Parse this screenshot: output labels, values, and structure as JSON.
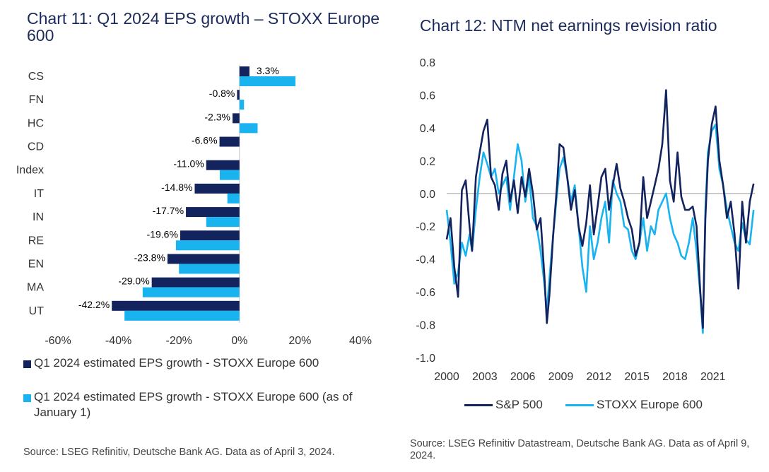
{
  "chart11": {
    "title": "Chart 11: Q1 2024 EPS growth – STOXX Europe 600",
    "source": "Source: LSEG Refinitiv, Deutsche Bank AG. Data as of April 3, 2024.",
    "colors": {
      "current": "#12235e",
      "jan": "#19b3f0"
    }
  },
  "chart12": {
    "title": "Chart 12: NTM net earnings revision ratio",
    "source": "Source: LSEG Refinitiv Datastream, Deutsche Bank AG. Data as of April 9, 2024.",
    "colors": {
      "sp500": "#12235e",
      "stoxx": "#19b3f0"
    }
  },
  "chart_data": [
    {
      "type": "bar",
      "orientation": "horizontal",
      "title": "Chart 11: Q1 2024 EPS growth – STOXX Europe 600",
      "categories": [
        "CS",
        "FN",
        "HC",
        "CD",
        "Index",
        "IT",
        "IN",
        "RE",
        "EN",
        "MA",
        "UT"
      ],
      "series": [
        {
          "name": "Q1 2024 estimated EPS growth - STOXX Europe 600",
          "values": [
            3.3,
            -0.8,
            -2.3,
            -6.6,
            -11.0,
            -14.8,
            -17.7,
            -19.6,
            -23.8,
            -29.0,
            -42.2
          ]
        },
        {
          "name": "Q1 2024 estimated EPS growth - STOXX Europe 600 (as of January 1)",
          "values": [
            18.5,
            1.5,
            6.0,
            0.0,
            -6.5,
            -4.0,
            -11.0,
            -21.0,
            -20.0,
            -32.0,
            -38.0
          ]
        }
      ],
      "data_labels": [
        "3.3%",
        "-0.8%",
        "-2.3%",
        "-6.6%",
        "-11.0%",
        "-14.8%",
        "-17.7%",
        "-19.6%",
        "-23.8%",
        "-29.0%",
        "-42.2%"
      ],
      "xlim": [
        -60,
        40
      ],
      "xticks": [
        -60,
        -40,
        -20,
        0,
        20,
        40
      ],
      "xtick_labels": [
        "-60%",
        "-40%",
        "-20%",
        "0%",
        "20%",
        "40%"
      ],
      "legend": "bottom"
    },
    {
      "type": "line",
      "title": "Chart 12: NTM net earnings revision ratio",
      "ylim": [
        -1.0,
        0.8
      ],
      "yticks": [
        0.8,
        0.6,
        0.4,
        0.2,
        0.0,
        -0.2,
        -0.4,
        -0.6,
        -0.8,
        -1.0
      ],
      "ytick_labels": [
        "0.8",
        "0.6",
        "0.4",
        "0.2",
        "0.0",
        "-0.2",
        "-0.4",
        "-0.6",
        "-0.8",
        "-1.0"
      ],
      "xlim": [
        2000,
        2024.3
      ],
      "xticks": [
        2000,
        2003,
        2006,
        2009,
        2012,
        2015,
        2018,
        2021
      ],
      "xtick_labels": [
        "2000",
        "2003",
        "2006",
        "2009",
        "2012",
        "2015",
        "2018",
        "2021"
      ],
      "legend": "bottom",
      "series": [
        {
          "name": "S&P 500",
          "x": [
            2000.0,
            2000.3,
            2000.6,
            2000.9,
            2001.2,
            2001.5,
            2001.8,
            2002.0,
            2002.3,
            2002.6,
            2002.9,
            2003.2,
            2003.5,
            2003.8,
            2004.1,
            2004.4,
            2004.7,
            2005.0,
            2005.3,
            2005.6,
            2005.9,
            2006.2,
            2006.5,
            2006.8,
            2007.1,
            2007.4,
            2007.7,
            2007.9,
            2008.1,
            2008.4,
            2008.7,
            2008.9,
            2009.2,
            2009.5,
            2009.8,
            2010.1,
            2010.4,
            2010.7,
            2011.0,
            2011.3,
            2011.6,
            2011.9,
            2012.2,
            2012.5,
            2012.8,
            2013.1,
            2013.4,
            2013.7,
            2014.0,
            2014.3,
            2014.6,
            2014.9,
            2015.2,
            2015.5,
            2015.8,
            2016.1,
            2016.4,
            2016.7,
            2017.0,
            2017.3,
            2017.6,
            2017.9,
            2018.2,
            2018.5,
            2018.8,
            2019.1,
            2019.4,
            2019.7,
            2020.0,
            2020.2,
            2020.4,
            2020.6,
            2020.9,
            2021.2,
            2021.5,
            2021.8,
            2022.1,
            2022.4,
            2022.7,
            2023.0,
            2023.3,
            2023.6,
            2023.9,
            2024.2
          ],
          "y": [
            -0.28,
            -0.15,
            -0.45,
            -0.63,
            0.02,
            0.08,
            -0.2,
            -0.35,
            0.1,
            0.25,
            0.38,
            0.45,
            0.1,
            0.05,
            -0.1,
            0.12,
            0.2,
            -0.05,
            0.08,
            -0.12,
            0.1,
            -0.02,
            0.15,
            0.0,
            -0.22,
            -0.15,
            -0.5,
            -0.79,
            -0.62,
            -0.25,
            0.05,
            0.3,
            0.28,
            0.1,
            -0.1,
            0.02,
            -0.2,
            -0.32,
            -0.18,
            0.05,
            -0.25,
            -0.08,
            0.1,
            0.15,
            -0.1,
            0.05,
            0.18,
            0.03,
            -0.05,
            -0.15,
            -0.22,
            -0.38,
            -0.3,
            0.1,
            -0.15,
            -0.05,
            0.05,
            0.15,
            0.3,
            0.63,
            0.08,
            -0.05,
            0.25,
            -0.02,
            -0.1,
            -0.1,
            -0.08,
            -0.2,
            -0.6,
            -0.82,
            -0.15,
            0.2,
            0.42,
            0.53,
            0.2,
            0.05,
            -0.15,
            -0.05,
            -0.25,
            -0.58,
            -0.05,
            -0.3,
            -0.05,
            0.06
          ]
        },
        {
          "name": "STOXX Europe 600",
          "x": [
            2000.0,
            2000.3,
            2000.6,
            2000.9,
            2001.2,
            2001.5,
            2001.8,
            2002.0,
            2002.3,
            2002.6,
            2002.9,
            2003.2,
            2003.5,
            2003.8,
            2004.1,
            2004.4,
            2004.7,
            2005.0,
            2005.3,
            2005.6,
            2005.9,
            2006.2,
            2006.5,
            2006.8,
            2007.1,
            2007.4,
            2007.7,
            2007.9,
            2008.1,
            2008.4,
            2008.7,
            2008.9,
            2009.2,
            2009.5,
            2009.8,
            2010.1,
            2010.4,
            2010.7,
            2011.0,
            2011.3,
            2011.6,
            2011.9,
            2012.2,
            2012.5,
            2012.8,
            2013.1,
            2013.4,
            2013.7,
            2014.0,
            2014.3,
            2014.6,
            2014.9,
            2015.2,
            2015.5,
            2015.8,
            2016.1,
            2016.4,
            2016.7,
            2017.0,
            2017.3,
            2017.6,
            2017.9,
            2018.2,
            2018.5,
            2018.8,
            2019.1,
            2019.4,
            2019.7,
            2020.0,
            2020.2,
            2020.4,
            2020.6,
            2020.9,
            2021.2,
            2021.5,
            2021.8,
            2022.1,
            2022.4,
            2022.7,
            2023.0,
            2023.3,
            2023.6,
            2023.9,
            2024.2
          ],
          "y": [
            -0.1,
            -0.3,
            -0.55,
            -0.48,
            -0.3,
            -0.38,
            -0.25,
            -0.35,
            -0.1,
            0.1,
            0.25,
            0.18,
            0.1,
            0.15,
            0.0,
            0.05,
            0.1,
            -0.1,
            0.1,
            0.3,
            0.2,
            -0.05,
            0.1,
            -0.15,
            -0.2,
            -0.35,
            -0.55,
            -0.72,
            -0.52,
            -0.25,
            0.0,
            0.15,
            0.22,
            0.1,
            -0.05,
            0.05,
            -0.2,
            -0.45,
            -0.6,
            -0.2,
            -0.4,
            -0.3,
            -0.15,
            -0.05,
            -0.3,
            0.08,
            0.0,
            -0.05,
            -0.2,
            -0.22,
            -0.35,
            -0.4,
            -0.3,
            -0.15,
            -0.35,
            -0.2,
            -0.25,
            -0.1,
            -0.05,
            0.0,
            -0.15,
            -0.25,
            -0.3,
            -0.38,
            -0.4,
            -0.3,
            -0.15,
            -0.35,
            -0.62,
            -0.85,
            -0.1,
            0.25,
            0.38,
            0.42,
            0.15,
            0.05,
            -0.1,
            -0.2,
            -0.3,
            -0.35,
            -0.18,
            -0.28,
            -0.31,
            -0.1
          ]
        }
      ]
    }
  ]
}
